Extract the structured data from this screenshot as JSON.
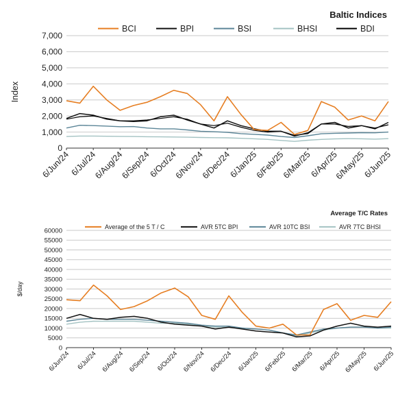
{
  "chart_data": [
    {
      "type": "line",
      "title": "Baltic Indices",
      "ylabel": "Index",
      "xlabel": "",
      "ylim": [
        0,
        7000
      ],
      "yticks": [
        "0",
        "1,000",
        "2,000",
        "3,000",
        "4,000",
        "5,000",
        "6,000",
        "7,000"
      ],
      "x_labels": [
        "6/Jun/24",
        "6/Jul/24",
        "6/Aug/24",
        "6/Sep/24",
        "6/Oct/24",
        "6/Nov/24",
        "6/Dec/24",
        "6/Jan/25",
        "6/Feb/25",
        "6/Mar/25",
        "6/Apr/25",
        "6/May/25",
        "6/Jun/25"
      ],
      "grid": true,
      "legend_position": "top",
      "x": [
        0,
        0.5,
        1,
        1.5,
        2,
        2.5,
        3,
        3.5,
        4,
        4.5,
        5,
        5.5,
        6,
        6.5,
        7,
        7.5,
        8,
        8.5,
        9,
        9.5,
        10,
        10.5,
        11,
        11.5,
        12
      ],
      "series": [
        {
          "name": "BCI",
          "color": "#e67e22",
          "width": 1.6,
          "values": [
            2950,
            2800,
            3850,
            3000,
            2350,
            2650,
            2850,
            3200,
            3600,
            3400,
            2700,
            1700,
            3200,
            2100,
            1150,
            1100,
            1600,
            850,
            1100,
            2900,
            2550,
            1750,
            2000,
            1700,
            2900
          ]
        },
        {
          "name": "BPI",
          "color": "#111111",
          "width": 1.5,
          "values": [
            1850,
            2150,
            2050,
            1800,
            1700,
            1650,
            1700,
            1950,
            2050,
            1750,
            1500,
            1250,
            1700,
            1400,
            1200,
            1050,
            1050,
            750,
            950,
            1500,
            1600,
            1250,
            1400,
            1200,
            1600
          ]
        },
        {
          "name": "BSI",
          "color": "#5b8597",
          "width": 1.4,
          "values": [
            1250,
            1420,
            1400,
            1370,
            1330,
            1340,
            1250,
            1200,
            1200,
            1130,
            1050,
            1020,
            980,
            900,
            860,
            810,
            720,
            660,
            770,
            890,
            920,
            940,
            960,
            950,
            1000
          ]
        },
        {
          "name": "BHSI",
          "color": "#a3c2c2",
          "width": 1.4,
          "values": [
            720,
            750,
            750,
            740,
            730,
            720,
            710,
            700,
            690,
            680,
            660,
            650,
            640,
            610,
            580,
            540,
            480,
            420,
            490,
            540,
            570,
            590,
            580,
            560,
            590
          ]
        },
        {
          "name": "BDI",
          "color": "#000000",
          "width": 1.2,
          "values": [
            1800,
            1950,
            2000,
            1850,
            1700,
            1700,
            1750,
            1850,
            1950,
            1800,
            1500,
            1400,
            1550,
            1300,
            1100,
            1000,
            1050,
            800,
            900,
            1500,
            1500,
            1350,
            1400,
            1250,
            1450
          ]
        }
      ]
    },
    {
      "type": "line",
      "title": "Average T/C Rates",
      "ylabel": "$/day",
      "xlabel": "",
      "ylim": [
        0,
        60000
      ],
      "yticks": [
        "0",
        "5000",
        "10000",
        "15000",
        "20000",
        "25000",
        "30000",
        "35000",
        "40000",
        "45000",
        "50000",
        "55000",
        "60000"
      ],
      "x_labels": [
        "6/Jun/24",
        "6/Jul/24",
        "6/Aug/24",
        "6/Sep/24",
        "6/Oct/24",
        "6/Nov/24",
        "6/Dec/24",
        "6/Jan/25",
        "6/Feb/25",
        "6/Mar/25",
        "6/Apr/25",
        "6/May/25",
        "6/Jun/25"
      ],
      "grid": true,
      "legend_position": "top",
      "x": [
        0,
        0.5,
        1,
        1.5,
        2,
        2.5,
        3,
        3.5,
        4,
        4.5,
        5,
        5.5,
        6,
        6.5,
        7,
        7.5,
        8,
        8.5,
        9,
        9.5,
        10,
        10.5,
        11,
        11.5,
        12
      ],
      "series": [
        {
          "name": "Average of the 5 T / C",
          "color": "#e67e22",
          "width": 1.6,
          "values": [
            24500,
            24000,
            32000,
            26500,
            19500,
            21000,
            24000,
            28000,
            30500,
            26000,
            16500,
            14500,
            26500,
            18000,
            11000,
            10000,
            12000,
            6500,
            6500,
            19500,
            22500,
            14000,
            16500,
            15500,
            23500
          ]
        },
        {
          "name": "AVR 5TC BPI",
          "color": "#111111",
          "width": 1.5,
          "values": [
            15000,
            17000,
            15000,
            14500,
            15500,
            16000,
            15000,
            13000,
            12000,
            11500,
            11000,
            9500,
            10500,
            9500,
            8500,
            8000,
            7500,
            5500,
            6000,
            9000,
            11000,
            12500,
            11000,
            10500,
            11000
          ]
        },
        {
          "name": "AVR 10TC BSI",
          "color": "#5b8597",
          "width": 1.4,
          "values": [
            13500,
            14500,
            15000,
            14500,
            14500,
            14500,
            14000,
            13500,
            13000,
            12500,
            11500,
            11000,
            11000,
            10000,
            9500,
            9000,
            7500,
            6500,
            8000,
            9500,
            10000,
            10500,
            10500,
            10000,
            10500
          ]
        },
        {
          "name": "AVR 7TC BHSI",
          "color": "#a3c2c2",
          "width": 1.4,
          "values": [
            12000,
            13000,
            13500,
            13500,
            13500,
            13500,
            13000,
            12500,
            12500,
            12000,
            11000,
            10500,
            10500,
            10000,
            9500,
            9000,
            7500,
            6000,
            7500,
            9000,
            10000,
            10500,
            10500,
            10000,
            10000
          ]
        }
      ]
    }
  ]
}
